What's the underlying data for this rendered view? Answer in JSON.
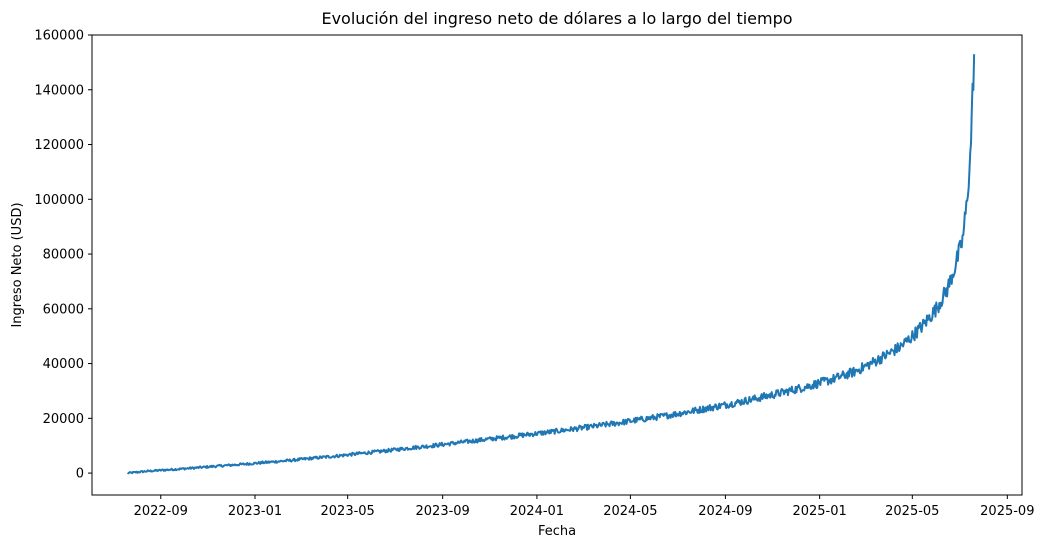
{
  "chart_data": {
    "type": "line",
    "title": "Evolución del ingreso neto de dólares a lo largo del tiempo",
    "xlabel": "Fecha",
    "ylabel": "Ingreso Neto (USD)",
    "xlim": [
      "2022-06-04",
      "2025-09-20"
    ],
    "ylim": [
      -8000,
      160000
    ],
    "x_ticks": [
      "2022-09",
      "2023-01",
      "2023-05",
      "2023-09",
      "2024-01",
      "2024-05",
      "2024-09",
      "2025-01",
      "2025-05",
      "2025-09"
    ],
    "y_ticks": [
      0,
      20000,
      40000,
      60000,
      80000,
      100000,
      120000,
      140000,
      160000
    ],
    "grid": false,
    "legend": "none",
    "series": [
      {
        "color": "#1f77b4",
        "x": [
          "2022-07-20",
          "2022-08-15",
          "2022-09-15",
          "2022-10-15",
          "2022-11-15",
          "2022-12-15",
          "2023-01-15",
          "2023-02-15",
          "2023-03-15",
          "2023-04-15",
          "2023-05-15",
          "2023-06-15",
          "2023-07-15",
          "2023-08-15",
          "2023-09-15",
          "2023-10-15",
          "2023-11-15",
          "2023-12-15",
          "2024-01-15",
          "2024-02-15",
          "2024-03-15",
          "2024-04-15",
          "2024-05-15",
          "2024-06-15",
          "2024-07-15",
          "2024-08-15",
          "2024-09-15",
          "2024-10-15",
          "2024-11-15",
          "2024-12-15",
          "2025-01-15",
          "2025-02-15",
          "2025-03-15",
          "2025-04-15",
          "2025-05-01",
          "2025-05-15",
          "2025-06-01",
          "2025-06-15",
          "2025-06-25",
          "2025-07-05",
          "2025-07-10",
          "2025-07-15",
          "2025-07-20"
        ],
        "values": [
          0,
          700,
          1300,
          1900,
          2600,
          3200,
          3900,
          4600,
          5400,
          6200,
          7100,
          8000,
          9000,
          9900,
          10900,
          11900,
          12900,
          13900,
          14900,
          16000,
          17100,
          18300,
          19600,
          20900,
          22400,
          24000,
          25700,
          27500,
          29500,
          31600,
          34000,
          37000,
          41000,
          46000,
          50000,
          54000,
          60000,
          67000,
          75000,
          85000,
          97000,
          115000,
          153000
        ]
      }
    ]
  }
}
